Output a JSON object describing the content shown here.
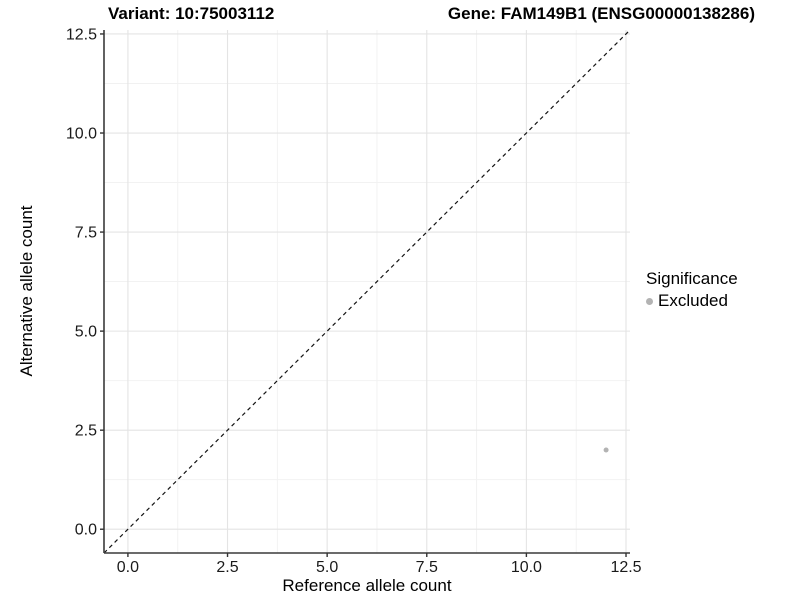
{
  "titles": {
    "variant": "Variant: 10:75003112",
    "gene": "Gene: FAM149B1 (ENSG00000138286)"
  },
  "legend": {
    "title": "Significance",
    "items": [
      {
        "label": "Excluded",
        "color": "#b3b3b3"
      }
    ]
  },
  "colors": {
    "background": "#ffffff",
    "grid_major": "#e4e4e4",
    "grid_minor": "#f1f1f1",
    "axis_line": "#3a3a3a",
    "tick_mark": "#333333",
    "reference_line": "#141414",
    "point_excluded": "#b3b3b3",
    "text": "#000000"
  },
  "chart_data": {
    "type": "scatter",
    "title": "Variant: 10:75003112   Gene: FAM149B1 (ENSG00000138286)",
    "xlabel": "Reference allele count",
    "ylabel": "Alternative allele count",
    "xlim": [
      -0.6,
      12.6
    ],
    "ylim": [
      -0.6,
      12.6
    ],
    "x_ticks": [
      0.0,
      2.5,
      5.0,
      7.5,
      10.0,
      12.5
    ],
    "y_ticks": [
      0.0,
      2.5,
      5.0,
      7.5,
      10.0,
      12.5
    ],
    "x_tick_labels": [
      "0.0",
      "2.5",
      "5.0",
      "7.5",
      "10.0",
      "12.5"
    ],
    "y_tick_labels": [
      "0.0",
      "2.5",
      "5.0",
      "7.5",
      "10.0",
      "12.5"
    ],
    "grid": true,
    "legend_position": "right",
    "reference_line": {
      "type": "identity",
      "slope": 1,
      "intercept": 0,
      "style": "dashed"
    },
    "series": [
      {
        "name": "Excluded",
        "color": "#b3b3b3",
        "points": [
          {
            "x": 12,
            "y": 2
          }
        ]
      }
    ]
  }
}
